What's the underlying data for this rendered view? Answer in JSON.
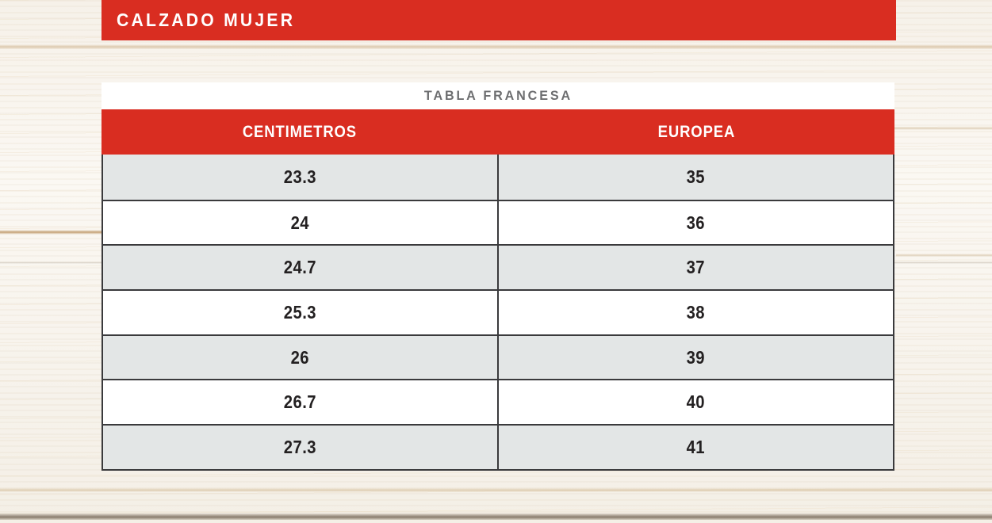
{
  "banner": {
    "title": "CALZADO MUJER"
  },
  "table": {
    "title": "TABLA FRANCESA",
    "columns": {
      "cm": "CENTIMETROS",
      "eu": "EUROPEA"
    },
    "rows": [
      {
        "cm": "23.3",
        "eu": "35"
      },
      {
        "cm": "24",
        "eu": "36"
      },
      {
        "cm": "24.7",
        "eu": "37"
      },
      {
        "cm": "25.3",
        "eu": "38"
      },
      {
        "cm": "26",
        "eu": "39"
      },
      {
        "cm": "26.7",
        "eu": "40"
      },
      {
        "cm": "27.3",
        "eu": "41"
      }
    ]
  },
  "colors": {
    "accent_red": "#d92d21",
    "row_alt_gray": "#e3e6e6",
    "border_dark": "#3a3a3c",
    "title_gray": "#6d6e70",
    "text_dark": "#232021",
    "wood_base": "#f8f5ef"
  },
  "chart_data": {
    "type": "table",
    "title": "TABLA FRANCESA",
    "section": "CALZADO MUJER",
    "columns": [
      "CENTIMETROS",
      "EUROPEA"
    ],
    "rows": [
      [
        23.3,
        35
      ],
      [
        24,
        36
      ],
      [
        24.7,
        37
      ],
      [
        25.3,
        38
      ],
      [
        26,
        39
      ],
      [
        26.7,
        40
      ],
      [
        27.3,
        41
      ]
    ]
  }
}
